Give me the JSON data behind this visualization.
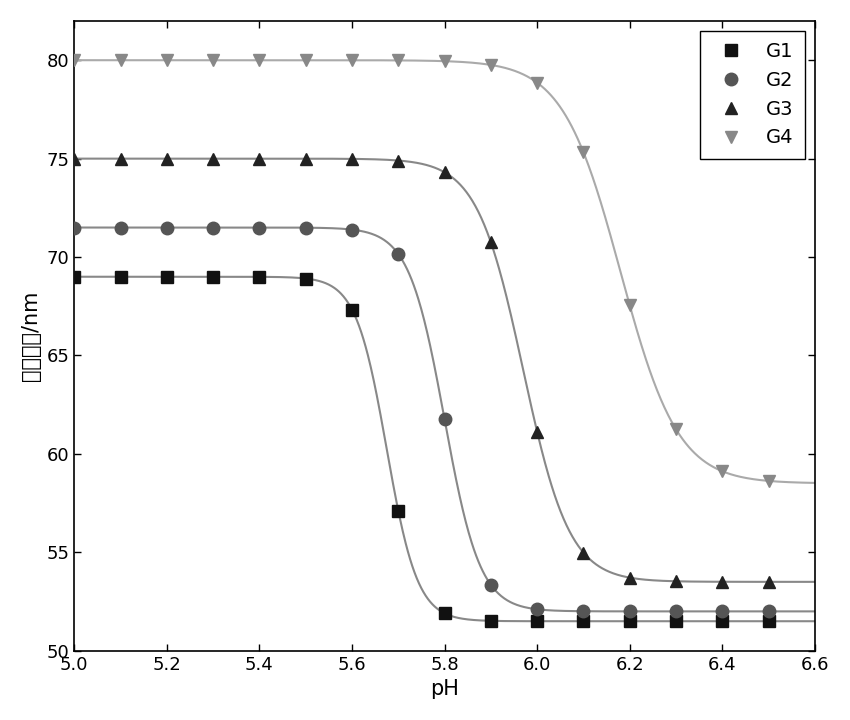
{
  "title": "",
  "xlabel": "pH",
  "ylabel": "胶束粒径/nm",
  "xlim": [
    5.0,
    6.6
  ],
  "ylim": [
    50,
    82
  ],
  "xticks": [
    5.0,
    5.2,
    5.4,
    5.6,
    5.8,
    6.0,
    6.2,
    6.4,
    6.6
  ],
  "yticks": [
    50,
    55,
    60,
    65,
    70,
    75,
    80
  ],
  "background_color": "#ffffff",
  "series": [
    {
      "label": "G1",
      "line_color": "#888888",
      "marker_color": "#111111",
      "marker": "s",
      "markersize": 8,
      "upper": 69.0,
      "lower": 51.5,
      "midpoint": 5.675,
      "steepness": 30
    },
    {
      "label": "G2",
      "line_color": "#888888",
      "marker_color": "#555555",
      "marker": "o",
      "markersize": 9,
      "upper": 71.5,
      "lower": 52.0,
      "midpoint": 5.8,
      "steepness": 26
    },
    {
      "label": "G3",
      "line_color": "#888888",
      "marker_color": "#222222",
      "marker": "^",
      "markersize": 9,
      "upper": 75.0,
      "lower": 53.5,
      "midpoint": 5.97,
      "steepness": 20
    },
    {
      "label": "G4",
      "line_color": "#aaaaaa",
      "marker_color": "#888888",
      "marker": "v",
      "markersize": 9,
      "upper": 80.0,
      "lower": 58.5,
      "midpoint": 6.18,
      "steepness": 16
    }
  ],
  "marker_positions": [
    5.0,
    5.1,
    5.2,
    5.3,
    5.4,
    5.5,
    5.6,
    5.7,
    5.8,
    5.9,
    6.0,
    6.1,
    6.2,
    6.3,
    6.4,
    6.5
  ],
  "legend_fontsize": 14,
  "axis_fontsize": 15,
  "tick_fontsize": 13
}
